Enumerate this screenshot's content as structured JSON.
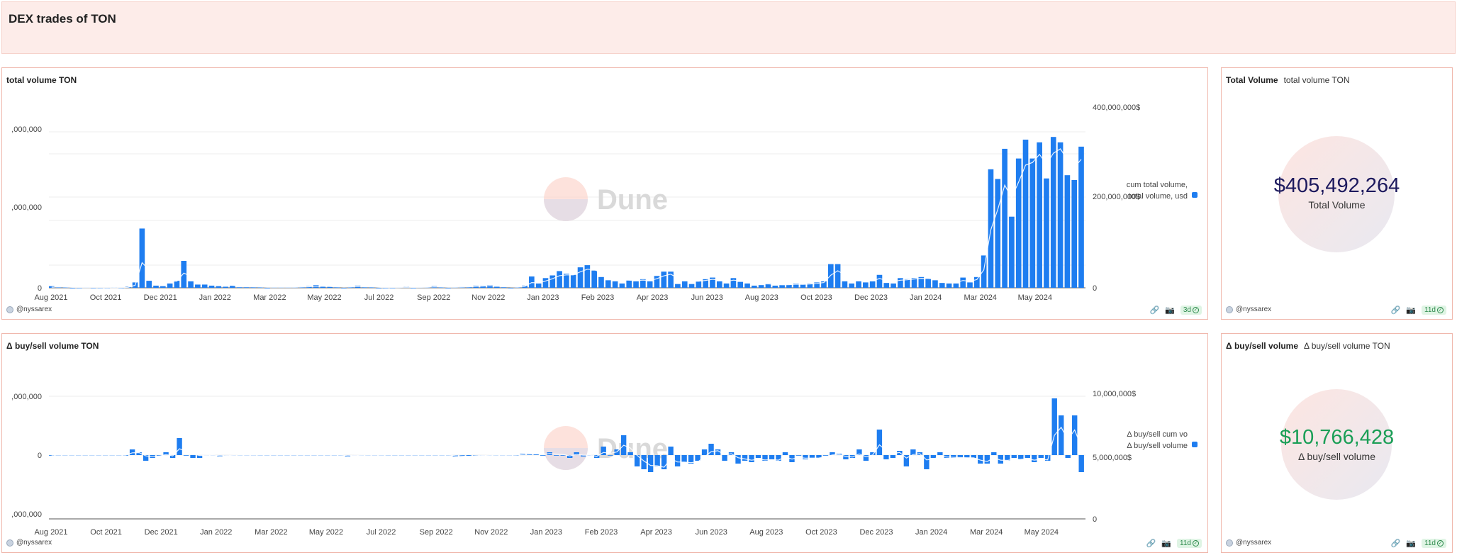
{
  "page": {
    "title": "DEX trades of TON"
  },
  "panels": {
    "volume": {
      "title": "total volume TON",
      "user": "@nyssarex",
      "age": "3d",
      "legend": "cum total volume,\ntotal volume, usd",
      "left_ticks": [
        ",000,000",
        ",000,000",
        "0"
      ],
      "right_ticks": [
        "400,000,000$",
        "200,000,000$",
        "0"
      ]
    },
    "total": {
      "title": "Total Volume",
      "subtitle": "total volume TON",
      "value": "$405,492,264",
      "label": "Total Volume",
      "user": "@nyssarex",
      "age": "11d"
    },
    "delta": {
      "title": "Δ buy/sell volume TON",
      "user": "@nyssarex",
      "age": "11d",
      "legend": "Δ buy/sell cum vo\nΔ buy/sell volume",
      "left_ticks": [
        ",000,000",
        "0",
        ",000,000"
      ],
      "right_ticks": [
        "10,000,000$",
        "5,000,000$",
        "0"
      ]
    },
    "delta_total": {
      "title": "Δ buy/sell volume",
      "subtitle": "Δ buy/sell volume TON",
      "value": "$10,766,428",
      "label": "Δ buy/sell volume",
      "user": "@nyssarex",
      "age": "11d"
    }
  },
  "watermark": "Dune",
  "colors": {
    "bar": "#1e7df0",
    "header_bg": "#fdece9",
    "green": "#1a9e56",
    "navy": "#1d1a5e"
  },
  "icons": [
    "link-icon",
    "camera-icon",
    "check-icon"
  ],
  "chart_data": [
    {
      "type": "bar",
      "title": "total volume TON",
      "x_tick_labels": [
        "Aug 2021",
        "Oct 2021",
        "Dec 2021",
        "Jan 2022",
        "Mar 2022",
        "May 2022",
        "Jul 2022",
        "Sep 2022",
        "Nov 2022",
        "Jan 2023",
        "Feb 2023",
        "Apr 2023",
        "Jun 2023",
        "Aug 2023",
        "Oct 2023",
        "Dec 2023",
        "Jan 2024",
        "Mar 2024",
        "May 2024"
      ],
      "series": [
        {
          "name": "total volume, usd",
          "values": [
            3,
            2,
            1,
            0,
            0,
            1,
            0,
            0,
            0,
            1,
            0,
            2,
            10,
            110,
            13,
            4,
            3,
            8,
            13,
            50,
            12,
            6,
            6,
            4,
            3,
            2,
            4,
            1,
            1,
            1,
            1,
            0,
            1,
            1,
            1,
            1,
            2,
            3,
            5,
            2,
            2,
            1,
            0,
            2,
            4,
            1,
            1,
            0,
            0,
            0,
            1,
            2,
            0,
            1,
            1,
            3,
            1,
            0,
            1,
            2,
            2,
            4,
            4,
            5,
            2,
            1,
            0,
            1,
            4,
            21,
            8,
            18,
            23,
            31,
            26,
            24,
            38,
            42,
            32,
            20,
            14,
            12,
            8,
            14,
            12,
            16,
            12,
            22,
            30,
            30,
            7,
            12,
            7,
            12,
            16,
            19,
            12,
            8,
            18,
            11,
            8,
            4,
            5,
            8,
            4,
            5,
            6,
            8,
            6,
            8,
            10,
            12,
            44,
            44,
            12,
            8,
            12,
            10,
            12,
            24,
            9,
            8,
            18,
            16,
            18,
            20,
            17,
            14,
            9,
            8,
            8,
            19,
            10,
            20,
            60,
            220,
            202,
            258,
            132,
            240,
            275,
            240,
            270,
            203,
            280,
            270,
            209,
            200,
            262
          ],
          "unit": "M usd"
        }
      ],
      "left_ticks": [
        ",000,000",
        ",000,000",
        "0"
      ],
      "right_ticks": [
        "400,000,000$",
        "200,000,000$",
        "0"
      ]
    },
    {
      "type": "bar",
      "title": "Δ buy/sell volume TON",
      "x_tick_labels": [
        "Aug 2021",
        "Oct 2021",
        "Dec 2021",
        "Jan 2022",
        "Mar 2022",
        "May 2022",
        "Jul 2022",
        "Sep 2022",
        "Nov 2022",
        "Jan 2023",
        "Feb 2023",
        "Apr 2023",
        "Jun 2023",
        "Aug 2023",
        "Oct 2023",
        "Dec 2023",
        "Jan 2024",
        "Mar 2024",
        "May 2024"
      ],
      "series": [
        {
          "name": "Δ buy/sell volume",
          "values": [
            0,
            0,
            0,
            0,
            0,
            0,
            0,
            0,
            0,
            0,
            0,
            0,
            4,
            2,
            -4,
            -2,
            0,
            2,
            -2,
            12,
            0,
            -2,
            -2,
            0,
            0,
            -1,
            0,
            0,
            0,
            0,
            0,
            0,
            0,
            0,
            0,
            0,
            0,
            0,
            0,
            0,
            0,
            0,
            0,
            0,
            -1,
            0,
            0,
            0,
            0,
            0,
            0,
            0,
            0,
            0,
            0,
            0,
            0,
            0,
            0,
            0,
            -1,
            -1,
            -1,
            0,
            0,
            0,
            0,
            0,
            0,
            0,
            1,
            1,
            1,
            0,
            2,
            0,
            0,
            -2,
            2,
            -1,
            0,
            -2,
            6,
            0,
            4,
            14,
            2,
            -8,
            -10,
            -12,
            -8,
            -10,
            6,
            -8,
            -5,
            -6,
            -4,
            4,
            8,
            4,
            -4,
            2,
            -6,
            -4,
            -5,
            -2,
            -4,
            -3,
            -4,
            2,
            -5,
            0,
            -3,
            -2,
            -2,
            0,
            2,
            1,
            -3,
            -2,
            4,
            -4,
            2,
            18,
            -3,
            -2,
            3,
            -8,
            4,
            2,
            -10,
            -2,
            2,
            -2,
            -2,
            -2,
            -2,
            -2,
            -6,
            -6,
            2,
            -6,
            -4,
            -2,
            -3,
            -2,
            -5,
            -2,
            -4,
            40,
            28,
            -2,
            28,
            -12
          ],
          "unit": "M"
        }
      ],
      "left_ticks": [
        ",000,000",
        "0",
        ",000,000"
      ],
      "right_ticks": [
        "10,000,000$",
        "5,000,000$",
        "0"
      ]
    }
  ]
}
